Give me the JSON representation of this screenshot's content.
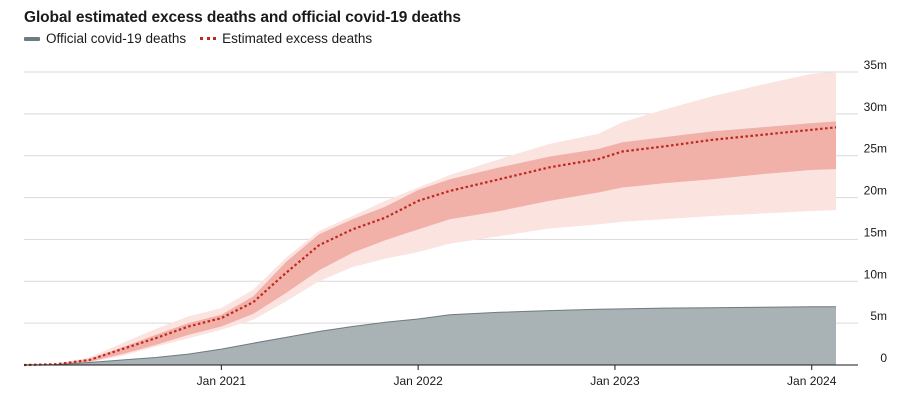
{
  "title": "Global estimated excess deaths and official covid-19 deaths",
  "legend": {
    "official": "Official covid-19 deaths",
    "excess": "Estimated excess deaths"
  },
  "colors": {
    "official_fill": "#a9b2b5",
    "official_line": "#6f7b80",
    "excess_line": "#c0271d",
    "band_inner": "#f1b0a8",
    "band_outer": "#fbe3e0",
    "grid": "#d9d9d9"
  },
  "chart_data": {
    "type": "area",
    "title": "Global estimated excess deaths and official covid-19 deaths",
    "y_unit": "m",
    "ylim": [
      0,
      35
    ],
    "y_ticks": [
      0,
      5,
      10,
      15,
      20,
      25,
      30,
      35
    ],
    "y_tick_labels": [
      "0",
      "5m",
      "10m",
      "15m",
      "20m",
      "25m",
      "30m",
      "35m"
    ],
    "x_ticks": [
      "2021-01-01",
      "2022-01-01",
      "2023-01-01",
      "2024-01-01"
    ],
    "x_tick_labels": [
      "Jan 2021",
      "Jan 2022",
      "Jan 2023",
      "Jan 2024"
    ],
    "x_range": [
      "2020-01-01",
      "2024-02-15"
    ],
    "grid": true,
    "legend_position": "top-left",
    "series": [
      {
        "name": "Official covid-19 deaths",
        "style": "area",
        "x": [
          "2020-01-01",
          "2020-03-01",
          "2020-05-01",
          "2020-07-01",
          "2020-09-01",
          "2020-11-01",
          "2021-01-01",
          "2021-03-01",
          "2021-05-01",
          "2021-07-01",
          "2021-09-01",
          "2021-11-01",
          "2022-01-01",
          "2022-03-01",
          "2022-06-01",
          "2022-09-01",
          "2022-12-01",
          "2023-01-15",
          "2023-04-01",
          "2023-07-01",
          "2023-10-01",
          "2024-01-01",
          "2024-02-15"
        ],
        "values": [
          0,
          0.05,
          0.3,
          0.6,
          0.9,
          1.3,
          1.9,
          2.6,
          3.3,
          4.0,
          4.6,
          5.1,
          5.5,
          6.0,
          6.3,
          6.5,
          6.65,
          6.7,
          6.8,
          6.85,
          6.9,
          6.95,
          6.95
        ]
      },
      {
        "name": "Estimated excess deaths",
        "style": "dotted-line",
        "x": [
          "2020-01-01",
          "2020-03-01",
          "2020-05-01",
          "2020-07-01",
          "2020-09-01",
          "2020-11-01",
          "2021-01-01",
          "2021-03-01",
          "2021-05-01",
          "2021-07-01",
          "2021-09-01",
          "2021-11-01",
          "2022-01-01",
          "2022-03-01",
          "2022-06-01",
          "2022-09-01",
          "2022-12-01",
          "2023-01-15",
          "2023-04-01",
          "2023-07-01",
          "2023-10-01",
          "2024-01-01",
          "2024-02-15"
        ],
        "values": [
          0,
          0.1,
          0.6,
          1.9,
          3.2,
          4.6,
          5.6,
          7.5,
          11.0,
          14.3,
          16.2,
          17.6,
          19.6,
          20.8,
          22.2,
          23.6,
          24.6,
          25.5,
          26.1,
          26.9,
          27.5,
          28.1,
          28.4
        ],
        "band_inner_low": [
          0,
          0.05,
          0.4,
          1.3,
          2.4,
          3.6,
          4.6,
          6.1,
          8.6,
          11.3,
          13.4,
          14.9,
          16.2,
          17.4,
          18.4,
          19.6,
          20.6,
          21.2,
          21.7,
          22.2,
          22.8,
          23.3,
          23.4
        ],
        "band_inner_high": [
          0,
          0.1,
          0.7,
          2.1,
          3.6,
          5.0,
          6.0,
          8.2,
          12.3,
          15.6,
          17.4,
          18.9,
          20.9,
          22.2,
          23.6,
          24.9,
          25.8,
          26.6,
          27.2,
          27.9,
          28.4,
          28.9,
          29.1
        ],
        "band_outer_low": [
          0,
          0.05,
          0.3,
          1.1,
          2.2,
          3.2,
          4.2,
          5.4,
          7.6,
          10.0,
          11.7,
          12.7,
          13.5,
          14.5,
          15.4,
          16.3,
          16.8,
          17.1,
          17.4,
          17.8,
          18.1,
          18.4,
          18.5
        ],
        "band_outer_high": [
          0,
          0.15,
          0.9,
          2.6,
          4.3,
          5.8,
          6.8,
          9.0,
          12.8,
          16.0,
          17.8,
          19.6,
          21.2,
          22.7,
          24.6,
          26.4,
          27.6,
          29.0,
          30.5,
          32.1,
          33.5,
          34.8,
          35.0
        ]
      }
    ]
  }
}
